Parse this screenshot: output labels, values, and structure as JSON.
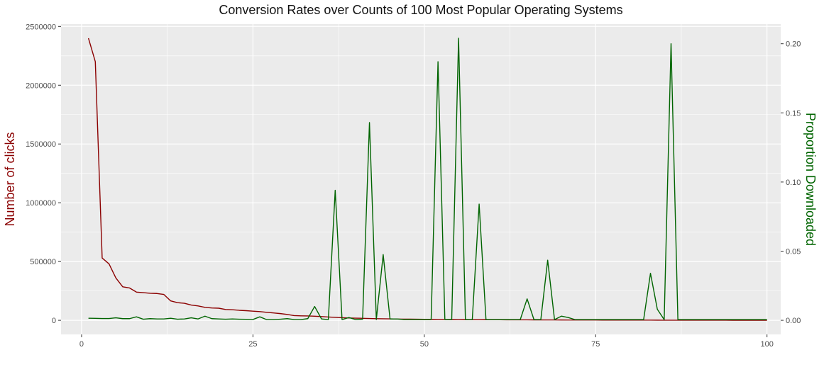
{
  "chart_data": {
    "type": "line",
    "title": "Conversion Rates over Counts of 100 Most Popular Operating Systems",
    "xlabel": "",
    "ylabel": "Number of clicks",
    "y2label": "Proportion Downloaded",
    "xlim": [
      -3,
      102
    ],
    "ylim": [
      -120000,
      2520000
    ],
    "y2lim": [
      -0.0102,
      0.2142
    ],
    "x_ticks": [
      0,
      25,
      50,
      75,
      100
    ],
    "x_tick_labels": [
      "0",
      "25",
      "50",
      "75",
      "100"
    ],
    "y_ticks": [
      0,
      500000,
      1000000,
      1500000,
      2000000,
      2500000
    ],
    "y_tick_labels": [
      "0",
      "500000",
      "1000000",
      "1500000",
      "2000000",
      "2500000"
    ],
    "y2_ticks": [
      0,
      0.05,
      0.1,
      0.15,
      0.2
    ],
    "y2_tick_labels": [
      "0.00",
      "0.05",
      "0.10",
      "0.15",
      "0.20"
    ],
    "grid": true,
    "colors": {
      "panel": "#ebebeb",
      "grid_major": "#ffffff",
      "clicks": "#8b0000",
      "proportion": "#006400"
    },
    "series": [
      {
        "axis": "left",
        "color": "#8b0000",
        "x": [
          1,
          2,
          3,
          4,
          5,
          6,
          7,
          8,
          9,
          10,
          11,
          12,
          13,
          14,
          15,
          16,
          17,
          18,
          19,
          20,
          21,
          22,
          23,
          24,
          25,
          26,
          27,
          28,
          29,
          30,
          31,
          32,
          33,
          34,
          35,
          36,
          37,
          38,
          39,
          40,
          41,
          42,
          43,
          44,
          45,
          46,
          47,
          48,
          49,
          50,
          51,
          52,
          53,
          54,
          55,
          56,
          57,
          58,
          59,
          60,
          61,
          62,
          63,
          64,
          65,
          66,
          67,
          68,
          69,
          70,
          71,
          72,
          73,
          74,
          75,
          76,
          77,
          78,
          79,
          80,
          81,
          82,
          83,
          84,
          85,
          86,
          87,
          88,
          89,
          90,
          91,
          92,
          93,
          94,
          95,
          96,
          97,
          98,
          99,
          100
        ],
        "values": [
          2400000,
          2200000,
          530000,
          480000,
          360000,
          285000,
          275000,
          240000,
          235000,
          230000,
          228000,
          220000,
          165000,
          150000,
          145000,
          130000,
          122000,
          110000,
          105000,
          103000,
          92000,
          90000,
          85000,
          82000,
          78000,
          74000,
          68000,
          63000,
          57000,
          50000,
          40000,
          38000,
          37000,
          35000,
          32000,
          28000,
          25000,
          22000,
          20000,
          18000,
          17000,
          15000,
          14000,
          13000,
          12000,
          11000,
          10000,
          9500,
          9000,
          8500,
          8000,
          7500,
          7000,
          6500,
          6000,
          5800,
          5500,
          5200,
          5000,
          4800,
          4500,
          4300,
          4100,
          3900,
          3700,
          3500,
          3300,
          3100,
          3000,
          2800,
          2600,
          2500,
          2400,
          2300,
          2200,
          2100,
          2000,
          1900,
          1800,
          1700,
          1600,
          1500,
          1400,
          1300,
          1200,
          1100,
          1000,
          950,
          900,
          850,
          800,
          750,
          700,
          650,
          600,
          550,
          500,
          450,
          400,
          350
        ]
      },
      {
        "axis": "right",
        "color": "#006400",
        "x": [
          1,
          2,
          3,
          4,
          5,
          6,
          7,
          8,
          9,
          10,
          11,
          12,
          13,
          14,
          15,
          16,
          17,
          18,
          19,
          20,
          21,
          22,
          23,
          24,
          25,
          26,
          27,
          28,
          29,
          30,
          31,
          32,
          33,
          34,
          35,
          36,
          37,
          38,
          39,
          40,
          41,
          42,
          43,
          44,
          45,
          46,
          47,
          48,
          49,
          50,
          51,
          52,
          53,
          54,
          55,
          56,
          57,
          58,
          59,
          60,
          61,
          62,
          63,
          64,
          65,
          66,
          67,
          68,
          69,
          70,
          71,
          72,
          73,
          74,
          75,
          76,
          77,
          78,
          79,
          80,
          81,
          82,
          83,
          84,
          85,
          86,
          87,
          88,
          89,
          90,
          91,
          92,
          93,
          94,
          95,
          96,
          97,
          98,
          99,
          100
        ],
        "values": [
          0.0015,
          0.0014,
          0.0013,
          0.0013,
          0.0018,
          0.0012,
          0.0012,
          0.0025,
          0.0008,
          0.0012,
          0.001,
          0.001,
          0.0015,
          0.0008,
          0.001,
          0.0018,
          0.001,
          0.003,
          0.0012,
          0.001,
          0.0008,
          0.001,
          0.0008,
          0.0007,
          0.0006,
          0.0025,
          0.0005,
          0.0005,
          0.0008,
          0.0012,
          0.0005,
          0.0005,
          0.0012,
          0.01,
          0.001,
          0.0005,
          0.094,
          0.0005,
          0.002,
          0.0005,
          0.0008,
          0.143,
          0.0005,
          0.0475,
          0.001,
          0.001,
          0.0005,
          0.0005,
          0.0005,
          0.0005,
          0.0005,
          0.187,
          0.0005,
          0.0005,
          0.204,
          0.0005,
          0.0005,
          0.084,
          0.0005,
          0.0005,
          0.0005,
          0.0005,
          0.0005,
          0.0005,
          0.0155,
          0.0005,
          0.0005,
          0.0435,
          0.0005,
          0.003,
          0.002,
          0.0005,
          0.0005,
          0.0005,
          0.0005,
          0.0005,
          0.0005,
          0.0005,
          0.0005,
          0.0005,
          0.0005,
          0.0005,
          0.034,
          0.008,
          0.0005,
          0.2,
          0.0005,
          0.0005,
          0.0005,
          0.0005,
          0.0005,
          0.0005,
          0.0005,
          0.0005,
          0.0005,
          0.0005,
          0.0005,
          0.0005,
          0.0005,
          0.0005
        ]
      }
    ]
  }
}
